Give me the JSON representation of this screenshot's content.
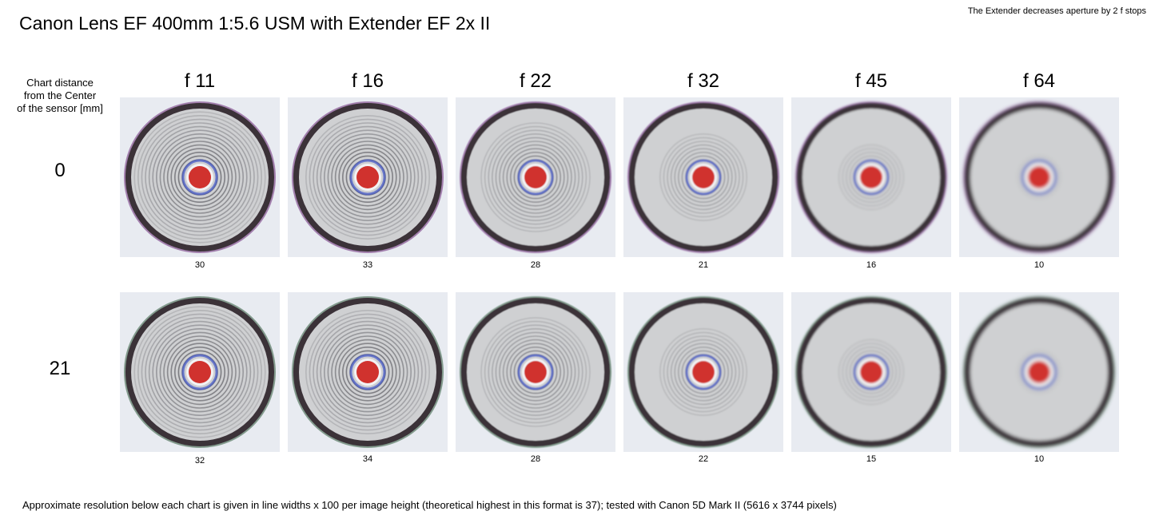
{
  "title": "Canon Lens EF 400mm 1:5.6 USM with Extender EF 2x II",
  "note": "The Extender decreases aperture by 2 f stops",
  "row_header": [
    "Chart distance",
    "from the Center",
    "of the sensor [mm]"
  ],
  "columns": [
    "f 11",
    "f 16",
    "f 22",
    "f 32",
    "f 45",
    "f 64"
  ],
  "rows": [
    {
      "label": "0",
      "values": [
        "30",
        "33",
        "28",
        "21",
        "16",
        "10"
      ]
    },
    {
      "label": "21",
      "values": [
        "32",
        "34",
        "28",
        "22",
        "15",
        "10"
      ]
    }
  ],
  "colors": {
    "chart_bg": "#e8ebf1",
    "disc": "#cfd0d2",
    "ring_dark": "#3a3038",
    "center_red": "#d0302f",
    "fringe_purple": "#6a2a78",
    "fringe_green": "#2d5a3c"
  },
  "footer": "Approximate resolution below each chart is given in line widths x 100 per image height (theoretical highest in this format is 37); tested with Canon 5D Mark II (5616 x 3744 pixels)"
}
